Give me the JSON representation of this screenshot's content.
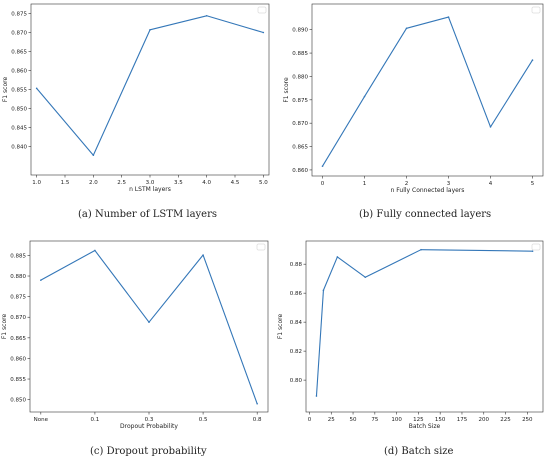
{
  "colors": {
    "line": "#3477b8",
    "axis": "#333333"
  },
  "chart_data": [
    {
      "type": "line",
      "caption": "(a)  Number of LSTM layers",
      "xlabel": "n LSTM layers",
      "ylabel": "F1 score",
      "legend": "top-right",
      "x": [
        1.0,
        2.0,
        3.0,
        4.0,
        5.0
      ],
      "values": [
        0.8553,
        0.8377,
        0.8707,
        0.8744,
        0.87
      ],
      "xlim": [
        0.9,
        5.1
      ],
      "ylim": [
        0.8325,
        0.8775
      ],
      "xticks": [
        1.0,
        1.5,
        2.0,
        2.5,
        3.0,
        3.5,
        4.0,
        4.5,
        5.0
      ],
      "xtick_labels": [
        "1.0",
        "1.5",
        "2.0",
        "2.5",
        "3.0",
        "3.5",
        "4.0",
        "4.5",
        "5.0"
      ],
      "yticks": [
        0.84,
        0.845,
        0.85,
        0.855,
        0.86,
        0.865,
        0.87,
        0.875
      ],
      "ytick_labels": [
        "0.840",
        "0.845",
        "0.850",
        "0.855",
        "0.860",
        "0.865",
        "0.870",
        "0.875"
      ]
    },
    {
      "type": "line",
      "caption": "(b)  Fully connected layers",
      "xlabel": "n Fully Connected layers",
      "ylabel": "F1 score",
      "legend": "top-right",
      "x": [
        0,
        1,
        2,
        3,
        4,
        5
      ],
      "values": [
        0.8608,
        0.8757,
        0.8903,
        0.8927,
        0.8692,
        0.8835
      ],
      "xlim": [
        -0.25,
        5.25
      ],
      "ylim": [
        0.8587,
        0.8955
      ],
      "xticks": [
        0,
        1,
        2,
        3,
        4,
        5
      ],
      "xtick_labels": [
        "0",
        "1",
        "2",
        "3",
        "4",
        "5"
      ],
      "yticks": [
        0.86,
        0.865,
        0.87,
        0.875,
        0.88,
        0.885,
        0.89
      ],
      "ytick_labels": [
        "0.860",
        "0.865",
        "0.870",
        "0.875",
        "0.880",
        "0.885",
        "0.890"
      ]
    },
    {
      "type": "line",
      "caption": "(c)  Dropout probability",
      "xlabel": "Dropout Probability",
      "ylabel": "F1 score",
      "legend": "top-right",
      "categories": [
        "None",
        "0.1",
        "0.3",
        "0.5",
        "0.8"
      ],
      "values": [
        0.879,
        0.8862,
        0.8688,
        0.8851,
        0.849
      ],
      "ylim": [
        0.847,
        0.8885
      ],
      "yticks": [
        0.85,
        0.855,
        0.86,
        0.865,
        0.87,
        0.875,
        0.88,
        0.885
      ],
      "ytick_labels": [
        "0.850",
        "0.855",
        "0.860",
        "0.865",
        "0.870",
        "0.875",
        "0.880",
        "0.885"
      ]
    },
    {
      "type": "line",
      "caption": "(d)  Batch size",
      "xlabel": "Batch Size",
      "ylabel": "F1 score",
      "legend": "top-right",
      "x": [
        8,
        16,
        32,
        64,
        128,
        256
      ],
      "values": [
        0.789,
        0.862,
        0.885,
        0.871,
        0.89,
        0.889
      ],
      "xlim": [
        -4,
        268
      ],
      "ylim": [
        0.778,
        0.896
      ],
      "xticks": [
        0,
        25,
        50,
        75,
        100,
        125,
        150,
        175,
        200,
        225,
        250
      ],
      "xtick_labels": [
        "0",
        "25",
        "50",
        "75",
        "100",
        "125",
        "150",
        "175",
        "200",
        "225",
        "250"
      ],
      "yticks": [
        0.8,
        0.82,
        0.84,
        0.86,
        0.88
      ],
      "ytick_labels": [
        "0.80",
        "0.82",
        "0.84",
        "0.86",
        "0.88"
      ]
    }
  ]
}
